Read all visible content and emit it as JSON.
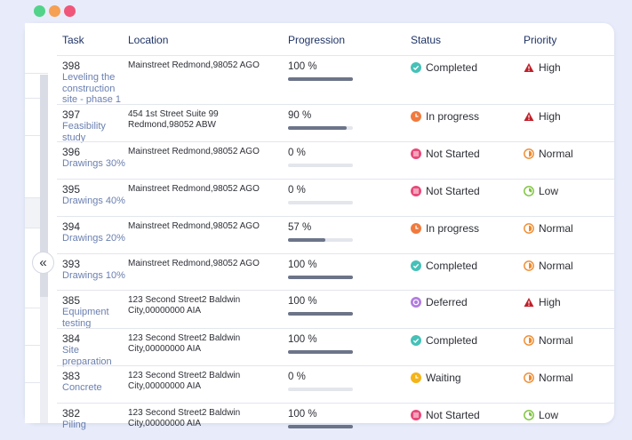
{
  "window": {
    "dots": [
      {
        "name": "green-dot",
        "color": "#52d38a"
      },
      {
        "name": "orange-dot",
        "color": "#f5a053"
      },
      {
        "name": "red-dot",
        "color": "#f0567a"
      }
    ]
  },
  "columns": {
    "task": "Task",
    "location": "Location",
    "progression": "Progression",
    "status": "Status",
    "priority": "Priority"
  },
  "rows": [
    {
      "id": "398",
      "name": "Leveling the construction site - phase 1",
      "location": "Mainstreet Redmond,98052 AGO",
      "progress_label": "100 %",
      "progress": 100,
      "status": "Completed",
      "status_icon": "check-circle-icon",
      "priority": "High",
      "priority_icon": "warning-triangle-icon"
    },
    {
      "id": "397",
      "name": "Feasibility study",
      "location": "454 1st Street Suite 99 Redmond,98052 ABW",
      "progress_label": "90 %",
      "progress": 90,
      "status": "In progress",
      "status_icon": "clock-icon",
      "priority": "High",
      "priority_icon": "warning-triangle-icon"
    },
    {
      "id": "396",
      "name": "Drawings 30%",
      "location": "Mainstreet Redmond,98052 AGO",
      "progress_label": "0 %",
      "progress": 0,
      "status": "Not Started",
      "status_icon": "not-started-icon",
      "priority": "Normal",
      "priority_icon": "normal-priority-icon"
    },
    {
      "id": "395",
      "name": "Drawings 40%",
      "location": "Mainstreet Redmond,98052 AGO",
      "progress_label": "0 %",
      "progress": 0,
      "status": "Not Started",
      "status_icon": "not-started-icon",
      "priority": "Low",
      "priority_icon": "low-priority-icon"
    },
    {
      "id": "394",
      "name": "Drawings 20%",
      "location": "Mainstreet Redmond,98052 AGO",
      "progress_label": "57 %",
      "progress": 57,
      "status": "In progress",
      "status_icon": "clock-icon",
      "priority": "Normal",
      "priority_icon": "normal-priority-icon"
    },
    {
      "id": "393",
      "name": "Drawings 10%",
      "location": "Mainstreet Redmond,98052 AGO",
      "progress_label": "100 %",
      "progress": 100,
      "status": "Completed",
      "status_icon": "check-circle-icon",
      "priority": "Normal",
      "priority_icon": "normal-priority-icon"
    },
    {
      "id": "385",
      "name": "Equipment testing",
      "location": "123 Second Street2 Baldwin City,00000000 AIA",
      "progress_label": "100 %",
      "progress": 100,
      "status": "Deferred",
      "status_icon": "deferred-icon",
      "priority": "High",
      "priority_icon": "warning-triangle-icon"
    },
    {
      "id": "384",
      "name": "Site preparation",
      "location": "123 Second Street2 Baldwin City,00000000 AIA",
      "progress_label": "100 %",
      "progress": 100,
      "status": "Completed",
      "status_icon": "check-circle-icon",
      "priority": "Normal",
      "priority_icon": "normal-priority-icon"
    },
    {
      "id": "383",
      "name": "Concrete",
      "location": "123 Second Street2 Baldwin City,00000000 AIA",
      "progress_label": "0 %",
      "progress": 0,
      "status": "Waiting",
      "status_icon": "waiting-icon",
      "priority": "Normal",
      "priority_icon": "normal-priority-icon"
    },
    {
      "id": "382",
      "name": "Piling",
      "location": "123 Second Street2 Baldwin City,00000000 AIA",
      "progress_label": "100 %",
      "progress": 100,
      "status": "Not Started",
      "status_icon": "not-started-icon",
      "priority": "Low",
      "priority_icon": "low-priority-icon"
    }
  ],
  "colors": {
    "completed": "#45c1b8",
    "in_progress": "#f07a3d",
    "not_started": "#e8497a",
    "deferred": "#b17de0",
    "waiting": "#f5b418",
    "high": "#c0202a",
    "normal": "#ef8a2e",
    "low": "#7cc23a"
  }
}
